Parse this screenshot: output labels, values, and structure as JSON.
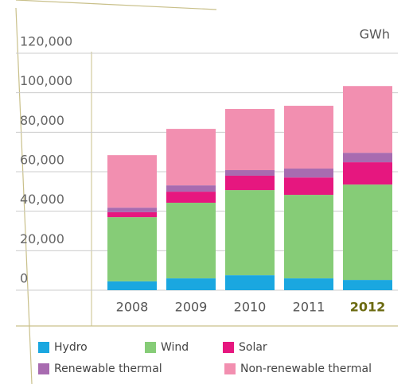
{
  "chart_data": {
    "type": "stacked_bar",
    "unit_label": "GWh",
    "categories": [
      "2008",
      "2009",
      "2010",
      "2011",
      "2012"
    ],
    "series": [
      {
        "name": "Hydro",
        "color": "#1aa7e0",
        "values": [
          4500,
          6000,
          7600,
          6000,
          5200
        ]
      },
      {
        "name": "Wind",
        "color": "#86cc77",
        "values": [
          32500,
          38300,
          43100,
          42300,
          48300
        ]
      },
      {
        "name": "Solar",
        "color": "#e6177f",
        "values": [
          2500,
          5600,
          7300,
          8800,
          11300
        ]
      },
      {
        "name": "Renewable thermal",
        "color": "#a86bb0",
        "values": [
          2300,
          3200,
          2800,
          4500,
          4800
        ]
      },
      {
        "name": "Non-renewable thermal",
        "color": "#f28fb0",
        "values": [
          26600,
          28600,
          31000,
          31800,
          33800
        ]
      }
    ],
    "ylim": [
      0,
      120000
    ],
    "yticks": [
      0,
      {
        "value": 20000,
        "label": "20,000"
      },
      {
        "value": 40000,
        "label": "40,000"
      },
      {
        "value": 60000,
        "label": "60,000"
      },
      {
        "value": 80000,
        "label": "80,000"
      },
      {
        "value": 100000,
        "label": "100,000"
      },
      {
        "value": 120000,
        "label": "120,000"
      }
    ],
    "grid": true
  }
}
